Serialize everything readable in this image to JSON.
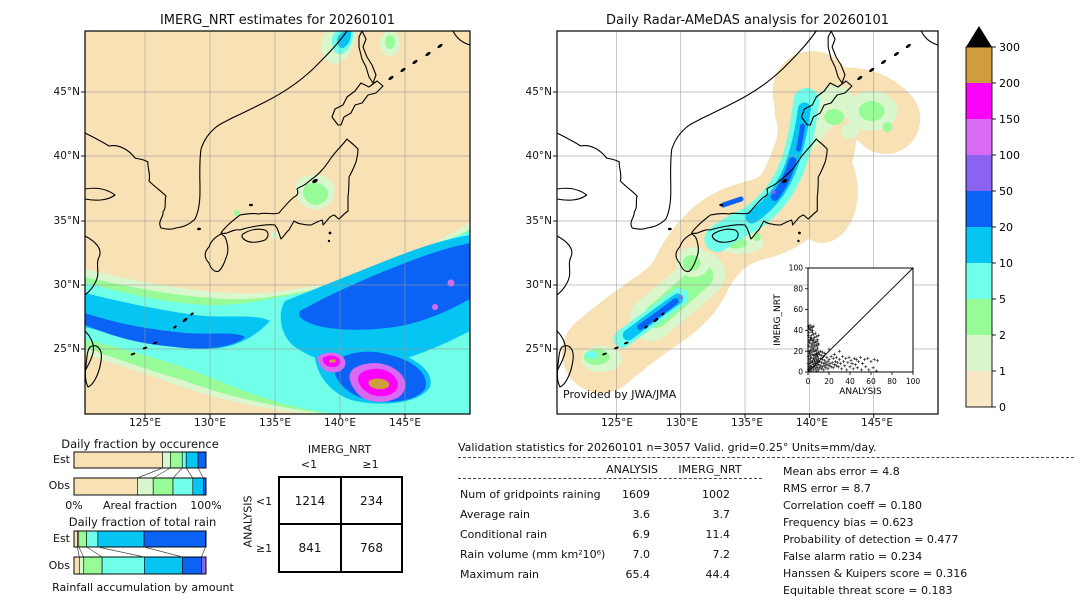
{
  "maps": {
    "left": {
      "title": "IMERG_NRT estimates for 20260101"
    },
    "right": {
      "title": "Daily Radar-AMeDAS analysis for 20260101",
      "credit": "Provided by JWA/JMA"
    },
    "lat_tick_labels": [
      "45°N",
      "40°N",
      "35°N",
      "30°N",
      "25°N"
    ],
    "lon_tick_labels": [
      "125°E",
      "130°E",
      "135°E",
      "140°E",
      "145°E"
    ],
    "map_background": "#f7e1b5"
  },
  "colorbar": {
    "tick_labels": [
      "0",
      "1",
      "2",
      "5",
      "10",
      "20",
      "50",
      "100",
      "150",
      "200",
      "300"
    ],
    "segment_colors": [
      "#f9e8c6",
      "#d9f6cd",
      "#97fb97",
      "#70ffe9",
      "#06c5f2",
      "#0b63f5",
      "#8a63f0",
      "#d86bf2",
      "#fb02fb",
      "#cf9c3e"
    ],
    "overflow_color": "#000000",
    "units_implied": "mm/day"
  },
  "chart_data": [
    {
      "id": "occurrence",
      "type": "bar",
      "stacked": true,
      "orientation": "horizontal",
      "title": "Daily fraction by occurence",
      "xlabel": "Areal fraction",
      "x_tick_labels": [
        "0%",
        "100%"
      ],
      "categories": [
        "Est",
        "Obs"
      ],
      "series": [
        {
          "name": "Est",
          "values": [
            67,
            6,
            9,
            3,
            9,
            6
          ]
        },
        {
          "name": "Obs",
          "values": [
            48,
            12,
            15,
            15,
            8,
            2
          ]
        }
      ],
      "segment_colors": [
        "#f7e1b5",
        "#d9f6cd",
        "#97fb97",
        "#70ffe9",
        "#06c5f2",
        "#0b63f5"
      ]
    },
    {
      "id": "total_rain",
      "type": "bar",
      "stacked": true,
      "orientation": "horizontal",
      "title": "Daily fraction of total rain",
      "xlabel": "Rainfall accumulation by amount",
      "categories": [
        "Est",
        "Obs"
      ],
      "series": [
        {
          "name": "Est",
          "values": [
            2.6,
            1.0,
            6.0,
            8.5,
            35.0,
            46.6,
            0.3
          ]
        },
        {
          "name": "Obs",
          "values": [
            4.0,
            3.4,
            13.9,
            32.0,
            28.9,
            14.3,
            3.5
          ]
        }
      ],
      "segment_colors": [
        "#f7e1b5",
        "#d9f6cd",
        "#97fb97",
        "#70ffe9",
        "#06c5f2",
        "#0b63f5",
        "#8a63f0"
      ]
    },
    {
      "id": "validation_scatter",
      "type": "scatter",
      "xlabel": "ANALYSIS",
      "ylabel": "IMERG_NRT",
      "xlim": [
        0,
        100
      ],
      "ylim": [
        0,
        100
      ],
      "ticks": [
        0,
        20,
        40,
        60,
        80,
        100
      ],
      "identity_line": true,
      "marker": "+",
      "points": [
        [
          0.5,
          2
        ],
        [
          0.5,
          8
        ],
        [
          0.5,
          15
        ],
        [
          0.5,
          25
        ],
        [
          0.5,
          35
        ],
        [
          0.5,
          44
        ],
        [
          1,
          5
        ],
        [
          1,
          12
        ],
        [
          1,
          20
        ],
        [
          1,
          30
        ],
        [
          1,
          38
        ],
        [
          1,
          42
        ],
        [
          1.5,
          3
        ],
        [
          1.5,
          8
        ],
        [
          1.5,
          18
        ],
        [
          1.5,
          28
        ],
        [
          2,
          3
        ],
        [
          2,
          10
        ],
        [
          2,
          16
        ],
        [
          2,
          24
        ],
        [
          2,
          33
        ],
        [
          2,
          41
        ],
        [
          2,
          45
        ],
        [
          2.5,
          6
        ],
        [
          2.5,
          13
        ],
        [
          2.5,
          21
        ],
        [
          2.5,
          31
        ],
        [
          3,
          1
        ],
        [
          3,
          9
        ],
        [
          3,
          14
        ],
        [
          3,
          19
        ],
        [
          3,
          27
        ],
        [
          3,
          35
        ],
        [
          3,
          40
        ],
        [
          3,
          43
        ],
        [
          3.5,
          5
        ],
        [
          3.5,
          24
        ],
        [
          3.5,
          32
        ],
        [
          4,
          4
        ],
        [
          4,
          11
        ],
        [
          4,
          17
        ],
        [
          4,
          22
        ],
        [
          4,
          30
        ],
        [
          4,
          38
        ],
        [
          4,
          43
        ],
        [
          4.5,
          9
        ],
        [
          4.5,
          26
        ],
        [
          4.5,
          40
        ],
        [
          5,
          2
        ],
        [
          5,
          7
        ],
        [
          5,
          13
        ],
        [
          5,
          20
        ],
        [
          5,
          28
        ],
        [
          5,
          36
        ],
        [
          5,
          44
        ],
        [
          5.5,
          16
        ],
        [
          5.5,
          23
        ],
        [
          5.5,
          31
        ],
        [
          6,
          5
        ],
        [
          6,
          10
        ],
        [
          6,
          16
        ],
        [
          6,
          25
        ],
        [
          6,
          33
        ],
        [
          6.5,
          12
        ],
        [
          6.5,
          20
        ],
        [
          6.5,
          28
        ],
        [
          7,
          3
        ],
        [
          7,
          8
        ],
        [
          7,
          14
        ],
        [
          7,
          21
        ],
        [
          7,
          29
        ],
        [
          7,
          37
        ],
        [
          7.5,
          10
        ],
        [
          7.5,
          17
        ],
        [
          7.5,
          25
        ],
        [
          8,
          1
        ],
        [
          8,
          6
        ],
        [
          8,
          12
        ],
        [
          8,
          18
        ],
        [
          8,
          26
        ],
        [
          8,
          34
        ],
        [
          8.5,
          16
        ],
        [
          8.5,
          21
        ],
        [
          8.5,
          29
        ],
        [
          9,
          4
        ],
        [
          9,
          9
        ],
        [
          9,
          15
        ],
        [
          9,
          23
        ],
        [
          9,
          31
        ],
        [
          9.5,
          11
        ],
        [
          9.5,
          18
        ],
        [
          9.5,
          26
        ],
        [
          10,
          2
        ],
        [
          10,
          7
        ],
        [
          10,
          13
        ],
        [
          10,
          19
        ],
        [
          10,
          27
        ],
        [
          10,
          35
        ],
        [
          11,
          4
        ],
        [
          11,
          10
        ],
        [
          11,
          17
        ],
        [
          12,
          6
        ],
        [
          12,
          13
        ],
        [
          12,
          20
        ],
        [
          13,
          3
        ],
        [
          13,
          9
        ],
        [
          13,
          16
        ],
        [
          14,
          5
        ],
        [
          14,
          12
        ],
        [
          14,
          19
        ],
        [
          15,
          2
        ],
        [
          15,
          8
        ],
        [
          15,
          15
        ],
        [
          16,
          6
        ],
        [
          16,
          11
        ],
        [
          16,
          18
        ],
        [
          17,
          4
        ],
        [
          17,
          9
        ],
        [
          18,
          7
        ],
        [
          18,
          14
        ],
        [
          19,
          3
        ],
        [
          19,
          10
        ],
        [
          20,
          6
        ],
        [
          20,
          12
        ],
        [
          20,
          22
        ],
        [
          21,
          8
        ],
        [
          22,
          5
        ],
        [
          22,
          15
        ],
        [
          23,
          9
        ],
        [
          24,
          4
        ],
        [
          24,
          13
        ],
        [
          25,
          7
        ],
        [
          25,
          17
        ],
        [
          26,
          10
        ],
        [
          27,
          6
        ],
        [
          27,
          14
        ],
        [
          28,
          9
        ],
        [
          29,
          5
        ],
        [
          30,
          12
        ],
        [
          30,
          20
        ],
        [
          31,
          8
        ],
        [
          32,
          3
        ],
        [
          33,
          15
        ],
        [
          34,
          10
        ],
        [
          35,
          6
        ],
        [
          36,
          13
        ],
        [
          37,
          2
        ],
        [
          38,
          9
        ],
        [
          39,
          14
        ],
        [
          40,
          5
        ],
        [
          41,
          11
        ],
        [
          42,
          8
        ],
        [
          43,
          3
        ],
        [
          44,
          13
        ],
        [
          45,
          7
        ],
        [
          46,
          12
        ],
        [
          47,
          4
        ],
        [
          48,
          10
        ],
        [
          50,
          14
        ],
        [
          51,
          2
        ],
        [
          52,
          8
        ],
        [
          54,
          12
        ],
        [
          55,
          5
        ],
        [
          57,
          13
        ],
        [
          58,
          2
        ],
        [
          60,
          10
        ],
        [
          62,
          4
        ],
        [
          63,
          12
        ],
        [
          65,
          1
        ],
        [
          66,
          11
        ]
      ]
    }
  ],
  "contingency": {
    "col_header": "IMERG_NRT",
    "row_header": "ANALYSIS",
    "col_labels": [
      "<1",
      "≥1"
    ],
    "row_labels": [
      "<1",
      "≥1"
    ],
    "values": [
      [
        "1214",
        "234"
      ],
      [
        "841",
        "768"
      ]
    ]
  },
  "validation": {
    "title": "Validation statistics for 20260101  n=3057 Valid. grid=0.25° Units=mm/day.",
    "columns": [
      "ANALYSIS",
      "IMERG_NRT"
    ],
    "rows": [
      {
        "label": "Num of gridpoints raining",
        "analysis": "1609",
        "imerg": "1002"
      },
      {
        "label": "Average rain",
        "analysis": "3.6",
        "imerg": "3.7"
      },
      {
        "label": "Conditional rain",
        "analysis": "6.9",
        "imerg": "11.4"
      },
      {
        "label": "Rain volume (mm km²10⁶)",
        "analysis": "7.0",
        "imerg": "7.2"
      },
      {
        "label": "Maximum rain",
        "analysis": "65.4",
        "imerg": "44.4"
      }
    ],
    "scores": [
      {
        "label": "Mean abs error =",
        "value": "4.8"
      },
      {
        "label": "RMS error =",
        "value": "8.7"
      },
      {
        "label": "Correlation coeff =",
        "value": "0.180"
      },
      {
        "label": "Frequency bias =",
        "value": "0.623"
      },
      {
        "label": "Probability of detection =",
        "value": "0.477"
      },
      {
        "label": "False alarm ratio =",
        "value": "0.234"
      },
      {
        "label": "Hanssen & Kuipers score =",
        "value": "0.316"
      },
      {
        "label": "Equitable threat score =",
        "value": "0.183"
      }
    ]
  }
}
